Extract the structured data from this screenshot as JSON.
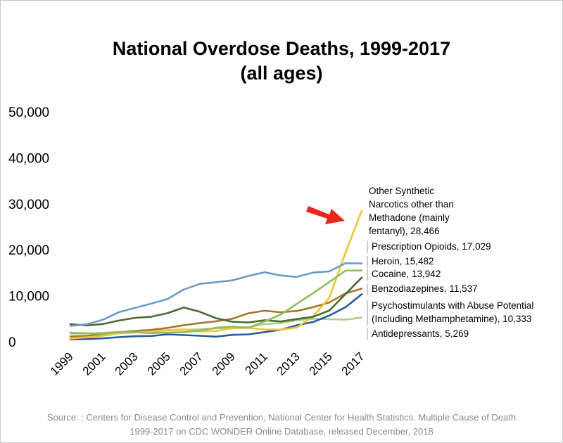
{
  "title": {
    "line1": "National Overdose Deaths, 1999-2017",
    "line2": "(all ages)"
  },
  "source": {
    "line1": "Source: : Centers for Disease Control and Prevention, National Center for Health Statistics. Multiple Cause of Death",
    "line2": "1999-2017 on CDC WONDER Online Database, released December, 2018"
  },
  "colors": {
    "arrow": "#e8281e",
    "label_line": "#9a9a9a"
  },
  "chart_data": {
    "type": "line",
    "title": "National Overdose Deaths, 1999-2017 (all ages)",
    "xlabel": "",
    "ylabel": "",
    "ylim": [
      0,
      50000
    ],
    "grid": false,
    "legend": "direct labels at line ends (right)",
    "yticks": [
      "0",
      "10,000",
      "20,000",
      "30,000",
      "40,000",
      "50,000"
    ],
    "ytick_values": [
      0,
      10000,
      20000,
      30000,
      40000,
      50000
    ],
    "xticks": [
      "1999",
      "2001",
      "2003",
      "2005",
      "2007",
      "2009",
      "2011",
      "2013",
      "2015",
      "2017"
    ],
    "x": [
      1999,
      2000,
      2001,
      2002,
      2003,
      2004,
      2005,
      2006,
      2007,
      2008,
      2009,
      2010,
      2011,
      2012,
      2013,
      2014,
      2015,
      2016,
      2017
    ],
    "annotations": [
      {
        "type": "arrow",
        "target_series": "Other Synthetic Narcotics other than Methadone (mainly fentanyl)",
        "x": 2017,
        "y": 28466
      }
    ],
    "series": [
      {
        "name": "Other Synthetic Narcotics other than Methadone (mainly fentanyl)",
        "label_lines": [
          "Other Synthetic",
          "Narcotics other than",
          "Methadone (mainly",
          "fentanyl), 28,466"
        ],
        "color": "#f2c532",
        "values": [
          730,
          957,
          1295,
          1842,
          2015,
          2207,
          2502,
          2707,
          2213,
          2306,
          2946,
          3007,
          2666,
          2628,
          3105,
          5544,
          9580,
          19413,
          28466
        ]
      },
      {
        "name": "Prescription Opioids",
        "label_lines": [
          "Prescription Opioids, 17,029"
        ],
        "color": "#6b9bc8",
        "values": [
          3442,
          3785,
          4770,
          6430,
          7370,
          8300,
          9300,
          11350,
          12580,
          12950,
          13350,
          14300,
          15100,
          14400,
          14100,
          15050,
          15300,
          17087,
          17029
        ]
      },
      {
        "name": "Heroin",
        "label_lines": [
          "Heroin, 15,482"
        ],
        "color": "#8dbe5f",
        "values": [
          1960,
          1842,
          1779,
          2089,
          2080,
          1878,
          2009,
          2088,
          2399,
          3041,
          3278,
          3036,
          4397,
          5925,
          8257,
          10574,
          12989,
          15469,
          15482
        ]
      },
      {
        "name": "Cocaine",
        "label_lines": [
          "Cocaine, 13,942"
        ],
        "color": "#4b6b2f",
        "values": [
          3822,
          3544,
          3833,
          4599,
          5199,
          5443,
          6208,
          7448,
          6512,
          5129,
          4350,
          4183,
          4681,
          4404,
          4944,
          5415,
          6784,
          10375,
          13942
        ]
      },
      {
        "name": "Benzodiazepines",
        "label_lines": [
          "Benzodiazepines, 11,537"
        ],
        "color": "#a6772a",
        "values": [
          1135,
          1298,
          1594,
          2046,
          2336,
          2606,
          3017,
          3588,
          4066,
          4450,
          5000,
          6200,
          6750,
          6400,
          6700,
          7500,
          8550,
          10500,
          11537
        ]
      },
      {
        "name": "Psychostimulants with Abuse Potential (Including Methamphetamine)",
        "label_lines": [
          "Psychostimulants with Abuse Potential",
          "(Including Methamphetamine), 10,333"
        ],
        "color": "#2b5a9b",
        "values": [
          547,
          578,
          728,
          1000,
          1200,
          1250,
          1600,
          1450,
          1300,
          1100,
          1500,
          1600,
          2100,
          2600,
          3600,
          4300,
          5700,
          7500,
          10333
        ]
      },
      {
        "name": "Antidepressants",
        "label_lines": [
          "Antidepressants, 5,269"
        ],
        "color": "#a8cf8a",
        "values": [
          1749,
          1810,
          1947,
          2136,
          2256,
          2303,
          2500,
          2600,
          2700,
          2900,
          3000,
          3200,
          3800,
          4100,
          4700,
          5000,
          4900,
          4800,
          5269
        ]
      }
    ]
  }
}
